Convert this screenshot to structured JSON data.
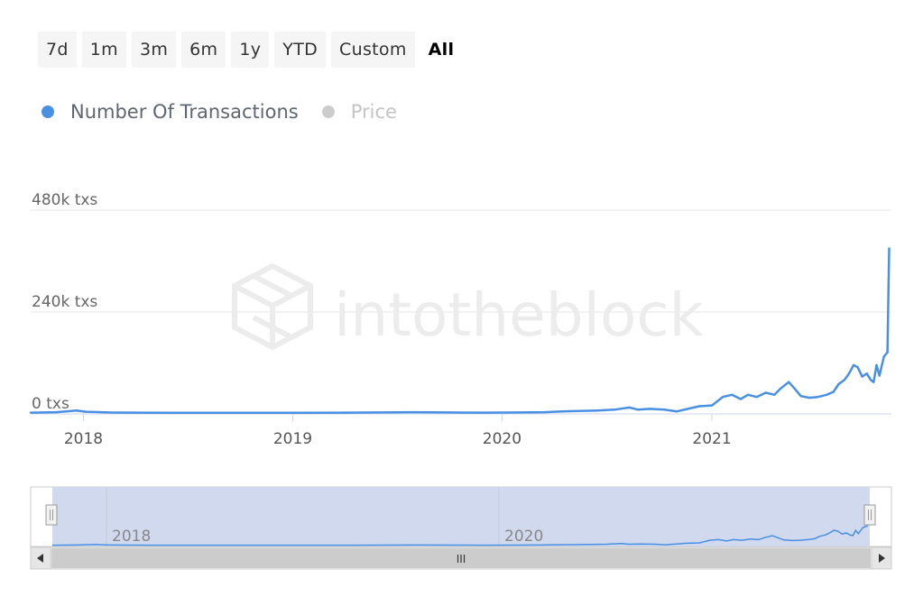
{
  "range_selector": {
    "buttons": [
      {
        "label": "7d",
        "active": false
      },
      {
        "label": "1m",
        "active": false
      },
      {
        "label": "3m",
        "active": false
      },
      {
        "label": "6m",
        "active": false
      },
      {
        "label": "1y",
        "active": false
      },
      {
        "label": "YTD",
        "active": false
      },
      {
        "label": "Custom",
        "active": false
      },
      {
        "label": "All",
        "active": true
      }
    ]
  },
  "legend": {
    "items": [
      {
        "label": "Number Of Transactions",
        "color": "#4a90e2",
        "visible": true
      },
      {
        "label": "Price",
        "color": "#cccccc",
        "visible": false
      }
    ]
  },
  "watermark": "intotheblock",
  "chart_data": {
    "type": "line",
    "title": "",
    "xlabel": "",
    "ylabel": "",
    "y_ticks": [
      {
        "value": 0,
        "label": "0 txs"
      },
      {
        "value": 240000,
        "label": "240k txs"
      },
      {
        "value": 480000,
        "label": "480k txs"
      }
    ],
    "ylim": [
      0,
      480000
    ],
    "x_ticks": [
      "2018",
      "2019",
      "2020",
      "2021"
    ],
    "xlim": [
      "2017-10-01",
      "2021-11-10"
    ],
    "grid": true,
    "legend_position": "top-left",
    "series": [
      {
        "name": "Number Of Transactions",
        "color": "#4a90e2",
        "x": [
          "2017-10-01",
          "2017-11-15",
          "2017-12-20",
          "2018-01-05",
          "2018-02-15",
          "2018-04-01",
          "2018-06-01",
          "2018-08-01",
          "2018-10-01",
          "2018-12-01",
          "2019-02-01",
          "2019-04-01",
          "2019-06-01",
          "2019-08-01",
          "2019-10-01",
          "2019-12-01",
          "2020-02-01",
          "2020-03-15",
          "2020-04-15",
          "2020-05-15",
          "2020-06-15",
          "2020-07-15",
          "2020-08-10",
          "2020-08-25",
          "2020-09-15",
          "2020-10-10",
          "2020-11-01",
          "2020-11-20",
          "2020-12-10",
          "2021-01-01",
          "2021-01-20",
          "2021-02-05",
          "2021-02-20",
          "2021-03-05",
          "2021-03-20",
          "2021-04-05",
          "2021-04-20",
          "2021-05-01",
          "2021-05-15",
          "2021-05-25",
          "2021-06-05",
          "2021-06-20",
          "2021-07-05",
          "2021-07-20",
          "2021-08-01",
          "2021-08-10",
          "2021-08-20",
          "2021-08-28",
          "2021-09-05",
          "2021-09-12",
          "2021-09-20",
          "2021-09-28",
          "2021-10-05",
          "2021-10-10",
          "2021-10-15",
          "2021-10-20",
          "2021-10-28",
          "2021-11-03",
          "2021-11-06"
        ],
        "values": [
          3000,
          4000,
          8000,
          5000,
          3500,
          3000,
          2500,
          2500,
          2500,
          2500,
          2800,
          3000,
          3500,
          4000,
          3500,
          3000,
          3500,
          4000,
          6000,
          7000,
          8000,
          10000,
          15000,
          10000,
          12000,
          10000,
          6000,
          12000,
          18000,
          20000,
          40000,
          45000,
          35000,
          45000,
          40000,
          50000,
          45000,
          60000,
          75000,
          60000,
          42000,
          38000,
          40000,
          45000,
          52000,
          70000,
          80000,
          95000,
          115000,
          110000,
          88000,
          95000,
          80000,
          75000,
          115000,
          90000,
          135000,
          145000,
          390000
        ]
      }
    ]
  },
  "navigator": {
    "x_labels": [
      "2018",
      "2020"
    ],
    "scroll_handle_label": "III"
  }
}
